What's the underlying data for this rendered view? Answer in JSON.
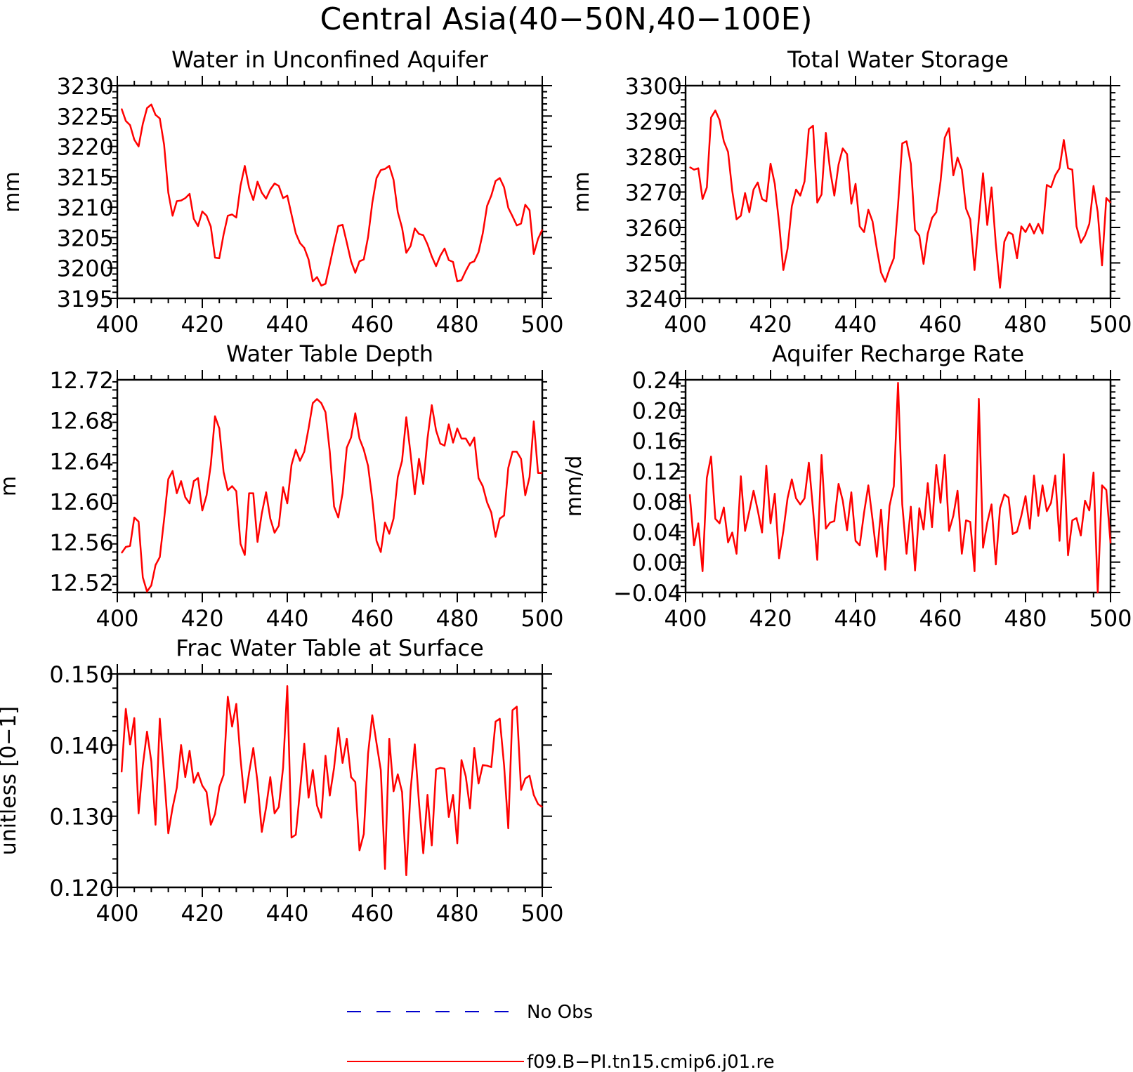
{
  "figure": {
    "title": "Central Asia(40−50N,40−100E)"
  },
  "colors": {
    "model_line": "#ff0000",
    "obs_line": "#0000cc",
    "axis": "#000000"
  },
  "legend": {
    "items": [
      {
        "label": "No Obs",
        "color": "#0000cc",
        "style": "dashed"
      },
      {
        "label": "f09.B−PI.tn15.cmip6.j01.re",
        "color": "#ff0000",
        "style": "solid"
      }
    ]
  },
  "chart_data": [
    {
      "type": "line",
      "title": "Water in Unconfined Aquifer",
      "xlabel": "",
      "ylabel": "mm",
      "xlim": [
        400,
        500
      ],
      "ylim": [
        3195,
        3230
      ],
      "xticks": [
        400,
        420,
        440,
        460,
        480,
        500
      ],
      "yticks": [
        3195,
        3200,
        3205,
        3210,
        3215,
        3220,
        3225,
        3230
      ],
      "ytick_labels": [
        "3195",
        "3200",
        "3205",
        "3210",
        "3215",
        "3220",
        "3225",
        "3230"
      ],
      "series": [
        {
          "name": "f09.B−PI.tn15.cmip6.j01.re",
          "x_start": 401,
          "values": [
            3226.2,
            3224.2,
            3223.5,
            3221.1,
            3220,
            3223.7,
            3226.3,
            3226.9,
            3225.2,
            3224.6,
            3220.3,
            3212.4,
            3208.6,
            3211,
            3211.1,
            3211.5,
            3212.2,
            3208.1,
            3206.9,
            3209.3,
            3208.6,
            3206.8,
            3201.7,
            3201.6,
            3205.5,
            3208.6,
            3208.8,
            3208.3,
            3213.5,
            3216.8,
            3213.2,
            3211.2,
            3214.2,
            3212.4,
            3211.4,
            3212.9,
            3213.9,
            3213.5,
            3211.5,
            3211.9,
            3208.8,
            3205.7,
            3204.1,
            3203.3,
            3201.4,
            3197.8,
            3198.5,
            3197.1,
            3197.4,
            3200.6,
            3203.9,
            3206.9,
            3207.1,
            3204.2,
            3201.1,
            3199.2,
            3201.1,
            3201.4,
            3205.1,
            3210.7,
            3214.8,
            3216.1,
            3216.3,
            3216.8,
            3214.5,
            3209.2,
            3206.6,
            3202.5,
            3203.6,
            3206.5,
            3205.6,
            3205.4,
            3203.9,
            3201.9,
            3200.3,
            3202,
            3203.2,
            3201.3,
            3201,
            3197.8,
            3198,
            3199.5,
            3200.8,
            3201.1,
            3202.6,
            3205.7,
            3210.2,
            3211.9,
            3214.3,
            3214.8,
            3213.3,
            3209.9,
            3208.5,
            3207,
            3207.3,
            3210.4,
            3209.5,
            3202.3,
            3204.8,
            3206.3
          ]
        }
      ]
    },
    {
      "type": "line",
      "title": "Total Water Storage",
      "xlabel": "",
      "ylabel": "mm",
      "xlim": [
        400,
        500
      ],
      "ylim": [
        3240,
        3300
      ],
      "xticks": [
        400,
        420,
        440,
        460,
        480,
        500
      ],
      "yticks": [
        3240,
        3250,
        3260,
        3270,
        3280,
        3290,
        3300
      ],
      "ytick_labels": [
        "3240",
        "3250",
        "3260",
        "3270",
        "3280",
        "3290",
        "3300"
      ],
      "series": [
        {
          "name": "f09.B−PI.tn15.cmip6.j01.re",
          "x_start": 401,
          "values": [
            3277,
            3276.3,
            3276.7,
            3268,
            3271.3,
            3291,
            3293,
            3290.3,
            3284.3,
            3281.3,
            3270.3,
            3262.3,
            3263.3,
            3269.7,
            3264.3,
            3270.7,
            3272.7,
            3268,
            3267.3,
            3278,
            3272.3,
            3261.3,
            3248,
            3254,
            3266,
            3270.7,
            3269,
            3273,
            3287.7,
            3288.7,
            3267,
            3269.3,
            3286.7,
            3276.3,
            3269,
            3277.7,
            3282.3,
            3280.7,
            3266.7,
            3272.3,
            3260.3,
            3258.7,
            3265,
            3261.7,
            3254,
            3247.3,
            3244.7,
            3248.3,
            3251.3,
            3266.3,
            3283.7,
            3284.3,
            3278,
            3259.3,
            3257.7,
            3249.7,
            3258.3,
            3262.7,
            3264.3,
            3273,
            3285.3,
            3288,
            3274.7,
            3279.7,
            3276.3,
            3265.3,
            3262.3,
            3248,
            3262.3,
            3275.3,
            3260.7,
            3271.3,
            3255.3,
            3243,
            3256,
            3258.7,
            3258,
            3251.3,
            3260.3,
            3258.7,
            3261,
            3258.3,
            3261,
            3258.3,
            3272,
            3271.3,
            3274.7,
            3276.7,
            3284.7,
            3276.7,
            3276.3,
            3260.3,
            3255.7,
            3257.7,
            3261,
            3271.7,
            3264.3,
            3249.3,
            3268.3,
            3267
          ]
        }
      ]
    },
    {
      "type": "line",
      "title": "Water Table Depth",
      "xlabel": "",
      "ylabel": "m",
      "xlim": [
        400,
        500
      ],
      "ylim": [
        12.51,
        12.72
      ],
      "xticks": [
        400,
        420,
        440,
        460,
        480,
        500
      ],
      "yticks": [
        12.52,
        12.56,
        12.6,
        12.64,
        12.68,
        12.72
      ],
      "ytick_labels": [
        "12.52",
        "12.56",
        "12.60",
        "12.64",
        "12.68",
        "12.72"
      ],
      "series": [
        {
          "name": "f09.B−PI.tn15.cmip6.j01.re",
          "x_start": 401,
          "values": [
            12.549,
            12.555,
            12.556,
            12.584,
            12.58,
            12.525,
            12.511,
            12.517,
            12.537,
            12.545,
            12.582,
            12.622,
            12.63,
            12.608,
            12.62,
            12.604,
            12.598,
            12.62,
            12.623,
            12.591,
            12.606,
            12.636,
            12.684,
            12.672,
            12.629,
            12.611,
            12.615,
            12.61,
            12.558,
            12.547,
            12.608,
            12.608,
            12.56,
            12.588,
            12.609,
            12.583,
            12.569,
            12.576,
            12.614,
            12.598,
            12.636,
            12.651,
            12.64,
            12.649,
            12.672,
            12.697,
            12.701,
            12.697,
            12.688,
            12.649,
            12.595,
            12.584,
            12.608,
            12.653,
            12.663,
            12.687,
            12.662,
            12.651,
            12.635,
            12.602,
            12.561,
            12.55,
            12.579,
            12.568,
            12.583,
            12.624,
            12.64,
            12.683,
            12.647,
            12.607,
            12.642,
            12.617,
            12.662,
            12.695,
            12.67,
            12.657,
            12.655,
            12.676,
            12.658,
            12.672,
            12.662,
            12.662,
            12.655,
            12.663,
            12.623,
            12.615,
            12.599,
            12.589,
            12.565,
            12.583,
            12.586,
            12.633,
            12.649,
            12.649,
            12.642,
            12.606,
            12.624,
            12.679,
            12.628,
            12.628
          ]
        }
      ]
    },
    {
      "type": "line",
      "title": "Aquifer Recharge Rate",
      "xlabel": "",
      "ylabel": "mm/d",
      "xlim": [
        400,
        500
      ],
      "ylim": [
        -0.04,
        0.24
      ],
      "xticks": [
        400,
        420,
        440,
        460,
        480,
        500
      ],
      "yticks": [
        -0.04,
        0,
        0.04,
        0.08,
        0.12,
        0.16,
        0.2,
        0.24
      ],
      "ytick_labels": [
        "−0.04",
        "0.00",
        "0.04",
        "0.08",
        "0.12",
        "0.16",
        "0.20",
        "0.24"
      ],
      "series": [
        {
          "name": "f09.B−PI.tn15.cmip6.j01.re",
          "x_start": 401,
          "values": [
            0.089,
            0.022,
            0.051,
            -0.012,
            0.111,
            0.139,
            0.057,
            0.051,
            0.072,
            0.026,
            0.039,
            0.011,
            0.113,
            0.041,
            0.067,
            0.094,
            0.068,
            0.039,
            0.127,
            0.051,
            0.09,
            0.005,
            0.041,
            0.084,
            0.109,
            0.084,
            0.076,
            0.084,
            0.131,
            0.069,
            0.003,
            0.141,
            0.044,
            0.052,
            0.054,
            0.103,
            0.081,
            0.042,
            0.092,
            0.028,
            0.022,
            0.065,
            0.101,
            0.056,
            0.007,
            0.069,
            -0.01,
            0.074,
            0.1,
            0.236,
            0.076,
            0.011,
            0.073,
            -0.011,
            0.071,
            0.043,
            0.104,
            0.046,
            0.128,
            0.078,
            0.141,
            0.041,
            0.061,
            0.094,
            0.011,
            0.055,
            0.053,
            -0.012,
            0.215,
            0.019,
            0.052,
            0.076,
            -0.003,
            0.071,
            0.089,
            0.085,
            0.037,
            0.04,
            0.061,
            0.087,
            0.044,
            0.114,
            0.061,
            0.101,
            0.067,
            0.078,
            0.114,
            0.028,
            0.142,
            0.009,
            0.055,
            0.058,
            0.035,
            0.081,
            0.068,
            0.118,
            -0.04,
            0.101,
            0.095,
            0.025
          ]
        }
      ]
    },
    {
      "type": "line",
      "title": "Frac Water Table at Surface",
      "xlabel": "",
      "ylabel": "unitless [0−1]",
      "xlim": [
        400,
        500
      ],
      "ylim": [
        0.12,
        0.15
      ],
      "xticks": [
        400,
        420,
        440,
        460,
        480,
        500
      ],
      "yticks": [
        0.12,
        0.13,
        0.14,
        0.15
      ],
      "ytick_labels": [
        "0.120",
        "0.130",
        "0.140",
        "0.150"
      ],
      "series": [
        {
          "name": "f09.B−PI.tn15.cmip6.j01.re",
          "x_start": 401,
          "values": [
            0.1362,
            0.1451,
            0.1401,
            0.1438,
            0.1304,
            0.1371,
            0.1419,
            0.1377,
            0.1288,
            0.1437,
            0.1359,
            0.1276,
            0.1312,
            0.134,
            0.14,
            0.1355,
            0.1392,
            0.1347,
            0.1361,
            0.1343,
            0.1334,
            0.1288,
            0.1303,
            0.1341,
            0.1358,
            0.1468,
            0.1426,
            0.1458,
            0.1381,
            0.1319,
            0.1361,
            0.1396,
            0.1348,
            0.1278,
            0.1312,
            0.1355,
            0.1304,
            0.1313,
            0.1368,
            0.1483,
            0.127,
            0.1274,
            0.1336,
            0.1402,
            0.1326,
            0.1365,
            0.1315,
            0.1298,
            0.1385,
            0.1329,
            0.1368,
            0.1424,
            0.1375,
            0.1409,
            0.1355,
            0.1348,
            0.1252,
            0.1275,
            0.1388,
            0.1442,
            0.1403,
            0.1365,
            0.1226,
            0.1409,
            0.1335,
            0.1359,
            0.1334,
            0.1217,
            0.1336,
            0.1401,
            0.1319,
            0.1248,
            0.133,
            0.1259,
            0.1366,
            0.1368,
            0.1367,
            0.1299,
            0.133,
            0.1262,
            0.1379,
            0.1356,
            0.1311,
            0.1396,
            0.1346,
            0.1372,
            0.1371,
            0.1369,
            0.1433,
            0.1437,
            0.1372,
            0.1283,
            0.1449,
            0.1454,
            0.1337,
            0.1353,
            0.1357,
            0.133,
            0.1317,
            0.1313
          ]
        }
      ]
    }
  ]
}
